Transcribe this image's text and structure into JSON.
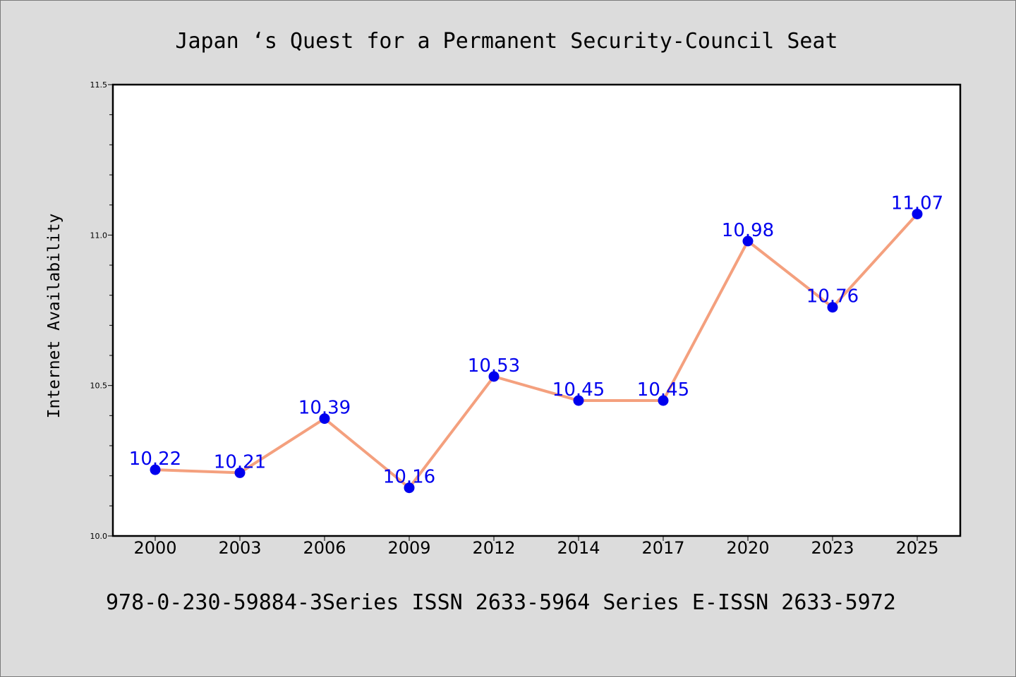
{
  "chart_data": {
    "type": "line",
    "title": "Japan ‘s Quest for a Permanent Security-Council Seat",
    "xlabel": "",
    "ylabel": "Internet Availability",
    "categories": [
      "2000",
      "2003",
      "2006",
      "2009",
      "2012",
      "2014",
      "2017",
      "2020",
      "2023",
      "2025"
    ],
    "series": [
      {
        "values": [
          10.22,
          10.21,
          10.39,
          10.16,
          10.53,
          10.45,
          10.45,
          10.98,
          10.76,
          11.07
        ],
        "data_labels": [
          "10.22",
          "10.21",
          "10.39",
          "10.16",
          "10.53",
          "10.45",
          "10.45",
          "10.98",
          "10.76",
          "11.07"
        ]
      }
    ],
    "ylim": [
      10.0,
      11.5
    ],
    "yticks": [
      {
        "value": 10.0,
        "label": "10.0"
      },
      {
        "value": 10.5,
        "label": "10.5"
      },
      {
        "value": 11.0,
        "label": "11.0"
      },
      {
        "value": 11.5,
        "label": "11.5"
      }
    ],
    "yminor_step": 0.1,
    "grid": false,
    "colors": {
      "line": "#f4a07e",
      "marker": "#0000ee",
      "label": "#0000ee",
      "background": "#dcdcdc",
      "plot_area": "#ffffff"
    }
  },
  "footer": {
    "text": "978-0-230-59884-3Series ISSN 2633-5964 Series E-ISSN 2633-5972"
  }
}
